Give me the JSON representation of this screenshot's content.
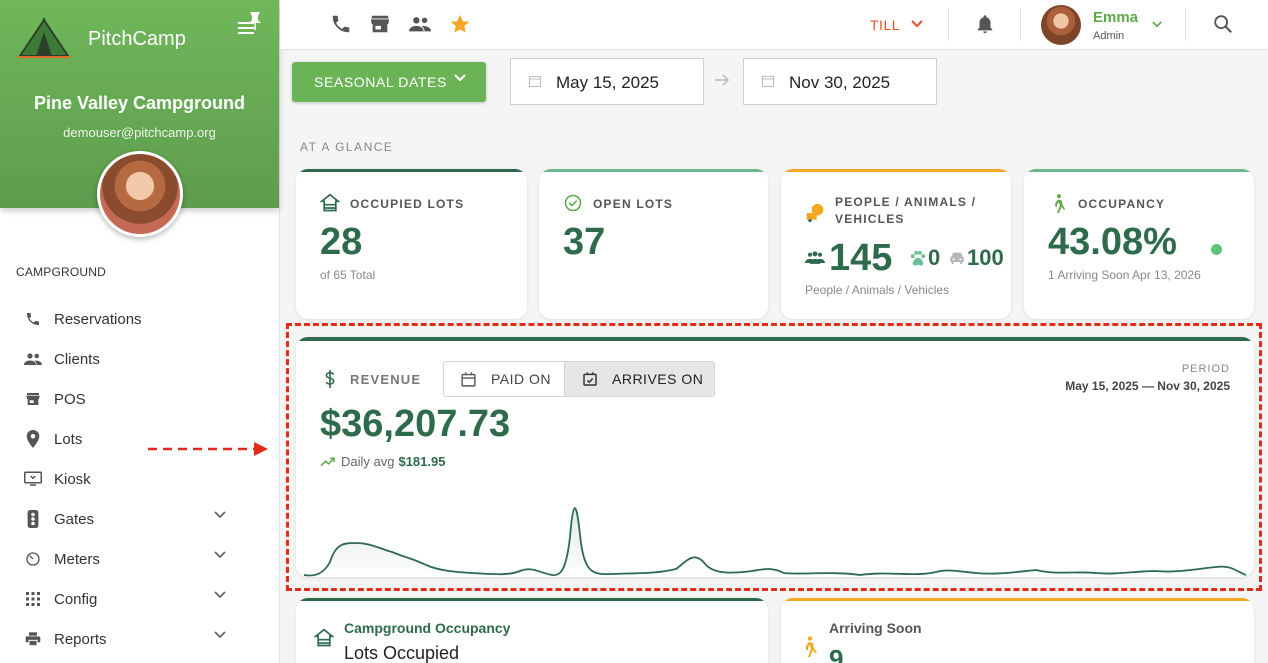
{
  "sidebar": {
    "brand": "PitchCamp",
    "campground_name": "Pine Valley Campground",
    "email": "demouser@pitchcamp.org",
    "section_label": "CAMPGROUND",
    "items": [
      {
        "label": "Reservations",
        "icon": "phone-icon"
      },
      {
        "label": "Clients",
        "icon": "people-icon"
      },
      {
        "label": "POS",
        "icon": "store-icon"
      },
      {
        "label": "Lots",
        "icon": "pin-icon"
      },
      {
        "label": "Kiosk",
        "icon": "kiosk-icon"
      },
      {
        "label": "Gates",
        "icon": "gate-icon"
      },
      {
        "label": "Meters",
        "icon": "meter-icon"
      },
      {
        "label": "Config",
        "icon": "grid-icon"
      },
      {
        "label": "Reports",
        "icon": "printer-icon"
      }
    ]
  },
  "topbar": {
    "till_label": "TILL",
    "user_name": "Emma",
    "user_role": "Admin"
  },
  "filters": {
    "season_label": "SEASONAL DATES",
    "start_date": "May 15, 2025",
    "end_date": "Nov 30, 2025"
  },
  "glance_label": "AT A GLANCE",
  "cards": {
    "occupied": {
      "title": "OCCUPIED LOTS",
      "value": "28",
      "sub": "of 65 Total"
    },
    "open": {
      "title": "OPEN LOTS",
      "value": "37"
    },
    "people": {
      "title_line1": "PEOPLE / ANIMALS /",
      "title_line2": "VEHICLES",
      "people": "145",
      "animals": "0",
      "vehicles": "100",
      "sub": "People / Animals / Vehicles"
    },
    "occupancy": {
      "title": "OCCUPANCY",
      "value": "43.08%",
      "sub": "1 Arriving Soon Apr 13, 2026"
    }
  },
  "revenue": {
    "title": "REVENUE",
    "toggle_paid": "PAID ON",
    "toggle_arrives": "ARRIVES ON",
    "period_label": "PERIOD",
    "period_value": "May 15, 2025 — Nov 30, 2025",
    "amount": "$36,207.73",
    "daily_label": "Daily avg",
    "daily_value": "$181.95"
  },
  "bottom": {
    "occupancy_title": "Campground Occupancy",
    "occupancy_sub": "Lots Occupied",
    "arriving_title": "Arriving Soon",
    "arriving_value": "9"
  },
  "colors": {
    "brand_green": "#6bb456",
    "dark_green": "#2e6a4c",
    "accent_orange": "#f5a623",
    "till_red": "#e4552b"
  }
}
